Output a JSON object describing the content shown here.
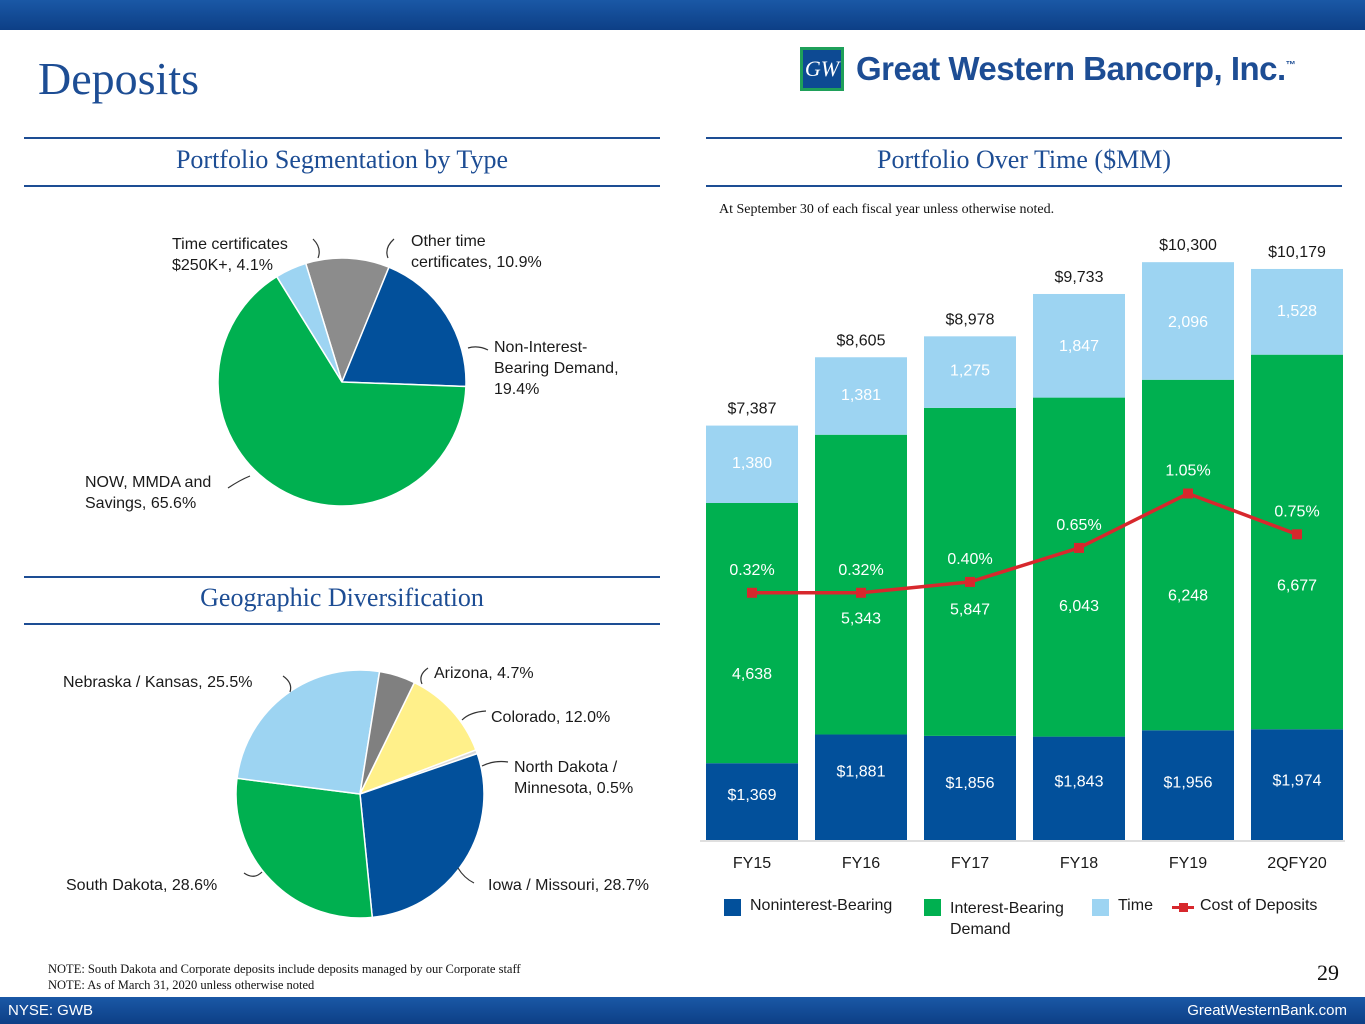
{
  "header": {
    "title": "Deposits",
    "logo_text": "Great Western Bancorp, Inc.",
    "logo_mark": "GW",
    "logo_tm": "™"
  },
  "sections": {
    "segmentation_title": "Portfolio Segmentation by Type",
    "over_time_title": "Portfolio Over Time ($MM)",
    "geo_title": "Geographic Diversification",
    "over_time_note": "At September 30 of each fiscal year unless otherwise noted."
  },
  "colors": {
    "navy": "#02509b",
    "green": "#00b050",
    "light_blue": "#9dd4f2",
    "gray": "#8c8c8c",
    "yellow": "#fff08a",
    "red": "#d7282d",
    "title_blue": "#1d4d94"
  },
  "chart_data": [
    {
      "type": "pie",
      "title": "Portfolio Segmentation by Type",
      "slices": [
        {
          "name": "Other time certificates",
          "value": 10.9,
          "color": "#8c8c8c",
          "label_lines": [
            "Other time",
            "certificates, 10.9%"
          ]
        },
        {
          "name": "Non-Interest-Bearing Demand",
          "value": 19.4,
          "color": "#02509b",
          "label_lines": [
            "Non-Interest-",
            "Bearing Demand,",
            "19.4%"
          ]
        },
        {
          "name": "NOW, MMDA and Savings",
          "value": 65.6,
          "color": "#00b050",
          "label_lines": [
            "NOW, MMDA and",
            "Savings, 65.6%"
          ]
        },
        {
          "name": "Time certificates $250K+",
          "value": 4.1,
          "color": "#9dd4f2",
          "label_lines": [
            "Time certificates",
            "$250K+, 4.1%"
          ]
        }
      ]
    },
    {
      "type": "pie",
      "title": "Geographic Diversification",
      "slices": [
        {
          "name": "Colorado",
          "value": 12.0,
          "color": "#fff08a",
          "label_lines": [
            "Colorado, 12.0%"
          ]
        },
        {
          "name": "North Dakota / Minnesota",
          "value": 0.5,
          "color": "#d9d9d9",
          "label_lines": [
            "North Dakota /",
            "Minnesota, 0.5%"
          ]
        },
        {
          "name": "Iowa / Missouri",
          "value": 28.7,
          "color": "#02509b",
          "label_lines": [
            "Iowa / Missouri, 28.7%"
          ]
        },
        {
          "name": "South Dakota",
          "value": 28.6,
          "color": "#00b050",
          "label_lines": [
            "South Dakota, 28.6%"
          ]
        },
        {
          "name": "Nebraska / Kansas",
          "value": 25.5,
          "color": "#9dd4f2",
          "label_lines": [
            "Nebraska / Kansas, 25.5%"
          ]
        },
        {
          "name": "Arizona",
          "value": 4.7,
          "color": "#808080",
          "label_lines": [
            "Arizona, 4.7%"
          ]
        }
      ]
    },
    {
      "type": "bar",
      "stacked": true,
      "title": "Portfolio Over Time ($MM)",
      "categories": [
        "FY15",
        "FY16",
        "FY17",
        "FY18",
        "FY19",
        "2QFY20"
      ],
      "ylim": [
        0,
        11200
      ],
      "series": [
        {
          "name": "Noninterest-Bearing",
          "color": "#02509b",
          "values": [
            1369,
            1881,
            1856,
            1843,
            1956,
            1974
          ],
          "labels": [
            "$1,369",
            "$1,881",
            "$1,856",
            "$1,843",
            "$1,956",
            "$1,974"
          ]
        },
        {
          "name": "Interest-Bearing Demand",
          "color": "#00b050",
          "values": [
            4638,
            5343,
            5847,
            6043,
            6248,
            6677
          ],
          "labels": [
            "4,638",
            "5,343",
            "5,847",
            "6,043",
            "6,248",
            "6,677"
          ]
        },
        {
          "name": "Time",
          "color": "#9dd4f2",
          "values": [
            1380,
            1381,
            1275,
            1847,
            2096,
            1528
          ],
          "labels": [
            "1,380",
            "1,381",
            "1,275",
            "1,847",
            "2,096",
            "1,528"
          ]
        }
      ],
      "totals": [
        "$7,387",
        "$8,605",
        "$8,978",
        "$9,733",
        "$10,300",
        "$10,179"
      ],
      "line": {
        "name": "Cost of Deposits",
        "color": "#d7282d",
        "values": [
          0.32,
          0.32,
          0.4,
          0.65,
          1.05,
          0.75
        ],
        "labels": [
          "0.32%",
          "0.32%",
          "0.40%",
          "0.65%",
          "1.05%",
          "0.75%"
        ],
        "ylim": [
          0,
          1.25
        ]
      },
      "legend": [
        "Noninterest-Bearing",
        "Interest-Bearing Demand",
        "Time",
        "Cost of Deposits"
      ]
    }
  ],
  "legend": {
    "noninterest": "Noninterest-Bearing",
    "interest_line1": "Interest-Bearing",
    "interest_line2": "Demand",
    "time": "Time",
    "cost": "Cost of Deposits"
  },
  "footer": {
    "note1": "NOTE: South Dakota and Corporate deposits include deposits managed by our Corporate staff",
    "note2": "NOTE: As of March 31, 2020 unless otherwise noted",
    "page_number": "29",
    "ticker": "NYSE: GWB",
    "website": "GreatWesternBank.com"
  }
}
